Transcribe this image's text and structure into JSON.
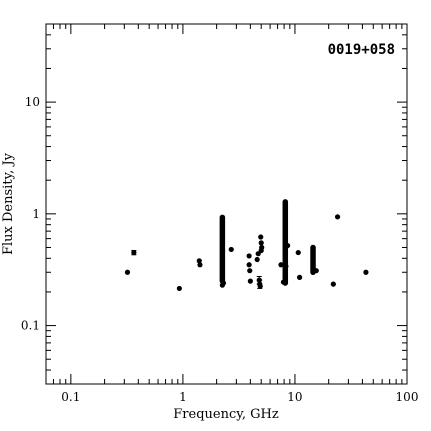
{
  "chart_data": {
    "type": "scatter",
    "title": "0019+058",
    "xlabel": "Frequency, GHz",
    "ylabel": "Flux Density, Jy",
    "xscale": "log",
    "yscale": "log",
    "xlim": [
      0.06,
      100
    ],
    "ylim": [
      0.03,
      50
    ],
    "grid": false,
    "x_tick_labels": [
      "0.1",
      "1",
      "10",
      "100"
    ],
    "y_tick_labels": [
      "0.1",
      "1",
      "10"
    ],
    "x_ticks": [
      0.1,
      1,
      10,
      100
    ],
    "y_ticks": [
      0.1,
      1,
      10
    ],
    "series": [
      {
        "points": [
          {
            "x": 0.32,
            "y": 0.3
          },
          {
            "x": 0.365,
            "y": 0.45,
            "err": 0.02
          },
          {
            "x": 0.93,
            "y": 0.215
          },
          {
            "x": 1.4,
            "y": 0.38
          },
          {
            "x": 1.42,
            "y": 0.35
          },
          {
            "x": 2.25,
            "y": 0.23
          },
          {
            "x": 2.3,
            "y": 0.24
          },
          {
            "x": 2.7,
            "y": 0.48
          },
          {
            "x": 3.9,
            "y": 0.42
          },
          {
            "x": 3.9,
            "y": 0.35
          },
          {
            "x": 3.95,
            "y": 0.31
          },
          {
            "x": 4.0,
            "y": 0.25
          },
          {
            "x": 4.6,
            "y": 0.39
          },
          {
            "x": 4.7,
            "y": 0.44
          },
          {
            "x": 4.8,
            "y": 0.255,
            "err": 0.02
          },
          {
            "x": 4.85,
            "y": 0.235,
            "err": 0.02
          },
          {
            "x": 4.9,
            "y": 0.225
          },
          {
            "x": 4.95,
            "y": 0.62
          },
          {
            "x": 5.0,
            "y": 0.55
          },
          {
            "x": 5.0,
            "y": 0.47
          },
          {
            "x": 5.05,
            "y": 0.5
          },
          {
            "x": 7.5,
            "y": 0.35
          },
          {
            "x": 7.9,
            "y": 0.245
          },
          {
            "x": 8.3,
            "y": 0.34
          },
          {
            "x": 8.6,
            "y": 0.52
          },
          {
            "x": 10.7,
            "y": 0.45
          },
          {
            "x": 11.0,
            "y": 0.27
          },
          {
            "x": 15.5,
            "y": 0.31
          },
          {
            "x": 22.0,
            "y": 0.235
          },
          {
            "x": 24.0,
            "y": 0.94
          },
          {
            "x": 43.0,
            "y": 0.3
          }
        ],
        "ranges": [
          {
            "x": 2.25,
            "ymin": 0.25,
            "ymax": 0.93
          },
          {
            "x": 8.2,
            "ymin": 0.24,
            "ymax": 1.28
          },
          {
            "x": 14.5,
            "ymin": 0.3,
            "ymax": 0.5
          }
        ]
      }
    ]
  }
}
